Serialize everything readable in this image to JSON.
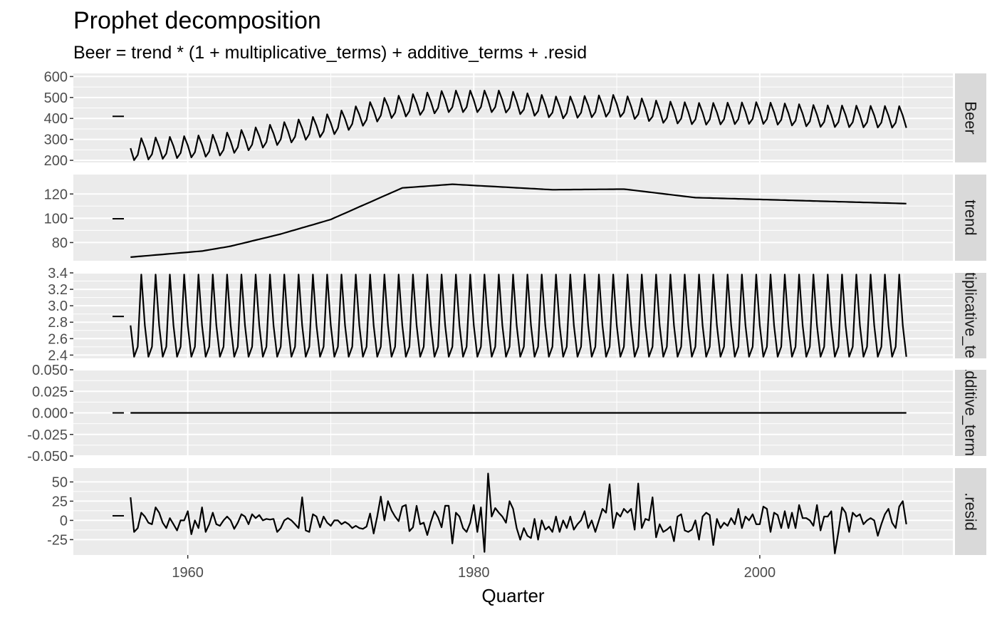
{
  "chart_data": {
    "type": "line",
    "title": "Prophet decomposition",
    "subtitle": "Beer = trend * (1 + multiplicative_terms) + additive_terms + .resid",
    "xlabel": "Quarter",
    "x_range": [
      1952,
      2013.5
    ],
    "x_ticks": [
      1960,
      1980,
      2000
    ],
    "x_tick_labels": [
      "1960",
      "1980",
      "2000"
    ],
    "start": 1956.0,
    "step": 0.25,
    "n": 218,
    "grid": true,
    "legend": "none",
    "panels": [
      {
        "strip": "Beer",
        "ylim": [
          190,
          615
        ],
        "y_ticks": [
          200,
          300,
          400,
          500,
          600
        ],
        "y_tick_labels": [
          "200",
          "300",
          "400",
          "500",
          "600"
        ],
        "scale_bar": 410,
        "cycle": [
          -12,
          -70,
          -46,
          33
        ],
        "level": [
          [
            1956,
            270
          ],
          [
            1962,
            290
          ],
          [
            1966,
            340
          ],
          [
            1970,
            390
          ],
          [
            1974,
            470
          ],
          [
            1978,
            500
          ],
          [
            1982,
            500
          ],
          [
            1986,
            470
          ],
          [
            1990,
            480
          ],
          [
            1993,
            450
          ],
          [
            1996,
            440
          ],
          [
            2000,
            445
          ],
          [
            2004,
            430
          ],
          [
            2010.5,
            425
          ]
        ]
      },
      {
        "strip": "trend",
        "ylim": [
          65,
          136
        ],
        "y_ticks": [
          80,
          100,
          120
        ],
        "y_tick_labels": [
          "80",
          "100",
          "120"
        ],
        "scale_bar": 99.6,
        "knots": [
          [
            1956,
            68
          ],
          [
            1961,
            73
          ],
          [
            1963,
            77
          ],
          [
            1966.5,
            87
          ],
          [
            1970,
            99
          ],
          [
            1975,
            125
          ],
          [
            1978.5,
            128
          ],
          [
            1985.5,
            123.5
          ],
          [
            1990.5,
            124
          ],
          [
            1995.5,
            117
          ],
          [
            2010.5,
            112
          ]
        ]
      },
      {
        "strip": "multiplicative_terms",
        "ylim": [
          2.36,
          3.4
        ],
        "y_ticks": [
          2.4,
          2.6,
          2.8,
          3.0,
          3.2,
          3.4
        ],
        "y_tick_labels": [
          "2.4",
          "2.6",
          "2.8",
          "3.0",
          "3.2",
          "3.4"
        ],
        "scale_bar": 2.87,
        "cycle": [
          2.76,
          2.38,
          2.5,
          3.38
        ]
      },
      {
        "strip": "additive_terms",
        "ylim": [
          -0.05,
          0.05
        ],
        "y_ticks": [
          -0.05,
          -0.025,
          0.0,
          0.025,
          0.05
        ],
        "y_tick_labels": [
          "-0.050",
          "-0.025",
          "0.000",
          "0.025",
          "0.050"
        ],
        "scale_bar": 0.0,
        "constant": 0.0
      },
      {
        "strip": ".resid",
        "ylim": [
          -45,
          68
        ],
        "y_ticks": [
          -25,
          0,
          25,
          50
        ],
        "y_tick_labels": [
          "-25",
          "0",
          "25",
          "50"
        ],
        "scale_bar": 6,
        "values": [
          30,
          -15,
          -10,
          10,
          5,
          -3,
          -5,
          17,
          10,
          -3,
          -10,
          3,
          -5,
          -13,
          0,
          0,
          12,
          -18,
          0,
          -10,
          17,
          -15,
          -5,
          10,
          -5,
          -7,
          0,
          5,
          0,
          -11,
          -3,
          8,
          5,
          -5,
          8,
          3,
          7,
          0,
          2,
          1,
          2,
          -15,
          -10,
          0,
          3,
          0,
          -5,
          -10,
          30,
          -13,
          -15,
          8,
          5,
          -9,
          5,
          -3,
          -7,
          0,
          0,
          -5,
          -2,
          -5,
          -10,
          -7,
          -10,
          -11,
          -8,
          9,
          -17,
          5,
          31,
          0,
          25,
          13,
          5,
          -1,
          18,
          20,
          -14,
          -9,
          19,
          -5,
          -3,
          -19,
          -2,
          12,
          4,
          -9,
          19,
          19,
          -30,
          10,
          5,
          -10,
          -15,
          -3,
          20,
          -15,
          17,
          -41,
          61,
          5,
          16,
          10,
          5,
          -3,
          25,
          15,
          -10,
          -25,
          -10,
          -20,
          -23,
          2,
          -25,
          0,
          -12,
          -8,
          -15,
          5,
          -15,
          0,
          -10,
          5,
          -12,
          -5,
          0,
          12,
          -10,
          0,
          -15,
          0,
          15,
          10,
          47,
          -10,
          10,
          5,
          15,
          10,
          15,
          -12,
          48,
          -10,
          2,
          0,
          30,
          -22,
          -5,
          -15,
          -12,
          -8,
          -27,
          5,
          8,
          -13,
          -15,
          -12,
          0,
          -25,
          5,
          10,
          7,
          -32,
          2,
          -10,
          -3,
          -7,
          3,
          -5,
          15,
          -10,
          5,
          0,
          8,
          -5,
          -5,
          18,
          15,
          -15,
          10,
          7,
          -10,
          12,
          -10,
          10,
          -10,
          20,
          3,
          3,
          0,
          -7,
          20,
          -13,
          5,
          5,
          12,
          -43,
          -15,
          17,
          10,
          -15,
          10,
          5,
          8,
          -5,
          0,
          3,
          0,
          -20,
          -5,
          8,
          15,
          -3,
          -10,
          18,
          25,
          -5,
          -10,
          -5
        ]
      }
    ]
  }
}
